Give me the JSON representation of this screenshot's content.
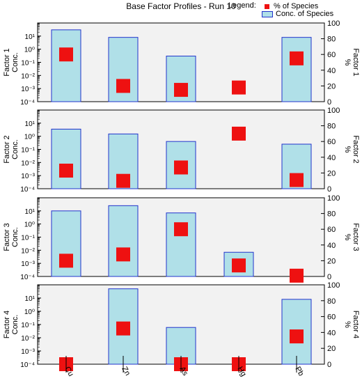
{
  "title": "Base Factor Profiles - Run 10",
  "legend": {
    "label": "Legend:",
    "items": [
      {
        "name": "% of Species",
        "color": "#ee1111"
      },
      {
        "name": "Conc. of Species",
        "color": "#b0e0e8"
      }
    ]
  },
  "chart_data": {
    "type": "bar",
    "categories": [
      "Cu",
      "Zn",
      "As",
      "Hg",
      "Pb"
    ],
    "left_axis": {
      "label": "Conc.",
      "scale": "log",
      "ylim": [
        0.0001,
        100
      ],
      "ticks": [
        "10⁻⁴",
        "10⁻³",
        "10⁻²",
        "10⁻¹",
        "10⁰",
        "10¹"
      ]
    },
    "right_axis": {
      "label": "%",
      "ylim": [
        0,
        100
      ],
      "ticks": [
        "0",
        "20",
        "40",
        "60",
        "80",
        "100"
      ]
    },
    "factors": [
      {
        "name": "Factor 1",
        "concentration": [
          30,
          8,
          0.3,
          null,
          8
        ],
        "percent": [
          60,
          20,
          15,
          18,
          55
        ]
      },
      {
        "name": "Factor 2",
        "concentration": [
          3.5,
          1.5,
          0.4,
          null,
          0.25
        ],
        "percent": [
          23,
          10,
          27,
          70,
          11
        ]
      },
      {
        "name": "Factor 3",
        "concentration": [
          10,
          25,
          7,
          0.007,
          null
        ],
        "percent": [
          20,
          28,
          60,
          14,
          1
        ]
      },
      {
        "name": "Factor 4",
        "concentration": [
          null,
          50,
          0.06,
          null,
          8
        ],
        "percent": [
          0,
          45,
          0,
          0,
          35
        ]
      }
    ],
    "grid": false
  }
}
